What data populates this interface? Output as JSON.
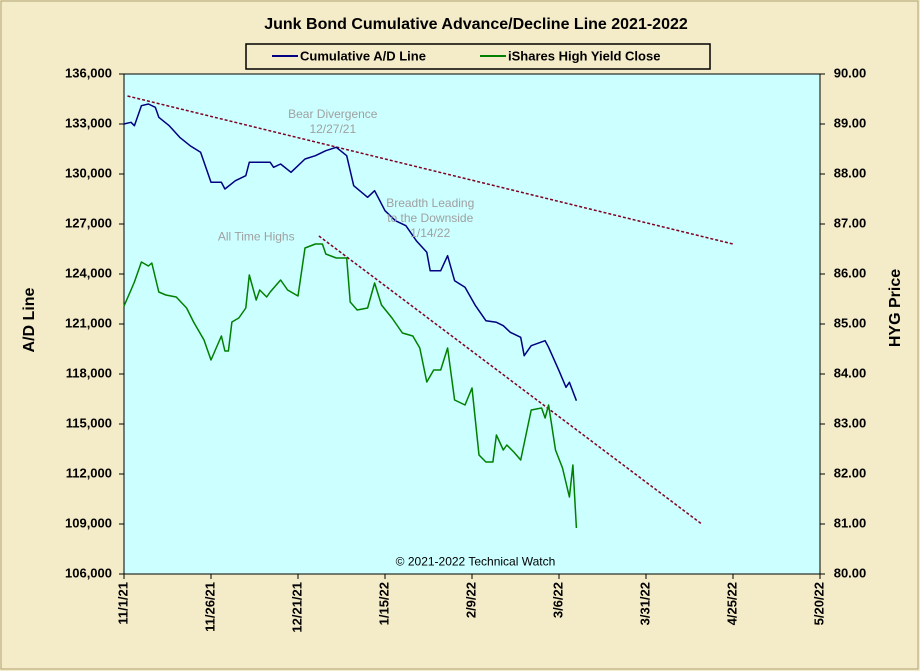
{
  "chart_data": {
    "type": "line",
    "title": "Junk Bond Cumulative  Advance/Decline  Line 2021-2022",
    "ylabel": "A/D Line",
    "y2label": "HYG Price",
    "xlim": [
      "2021-11-01",
      "2022-05-20"
    ],
    "xticks": [
      {
        "value": "2021-11-01",
        "label": "11/1/21"
      },
      {
        "value": "2021-11-26",
        "label": "11/26/21"
      },
      {
        "value": "2021-12-21",
        "label": "12/21/21"
      },
      {
        "value": "2022-01-15",
        "label": "1/15/22"
      },
      {
        "value": "2022-02-09",
        "label": "2/9/22"
      },
      {
        "value": "2022-03-06",
        "label": "3/6/22"
      },
      {
        "value": "2022-03-31",
        "label": "3/31/22"
      },
      {
        "value": "2022-04-25",
        "label": "4/25/22"
      },
      {
        "value": "2022-05-20",
        "label": "5/20/22"
      }
    ],
    "ylim": [
      106000,
      136000
    ],
    "yticks": [
      {
        "value": 106000,
        "label": "106,000"
      },
      {
        "value": 109000,
        "label": "109,000"
      },
      {
        "value": 112000,
        "label": "112,000"
      },
      {
        "value": 115000,
        "label": "115,000"
      },
      {
        "value": 118000,
        "label": "118,000"
      },
      {
        "value": 121000,
        "label": "121,000"
      },
      {
        "value": 124000,
        "label": "124,000"
      },
      {
        "value": 127000,
        "label": "127,000"
      },
      {
        "value": 130000,
        "label": "130,000"
      },
      {
        "value": 133000,
        "label": "133,000"
      },
      {
        "value": 136000,
        "label": "136,000"
      }
    ],
    "y2lim": [
      80,
      90
    ],
    "y2ticks": [
      {
        "value": 80,
        "label": "80.00"
      },
      {
        "value": 81,
        "label": "81.00"
      },
      {
        "value": 82,
        "label": "82.00"
      },
      {
        "value": 83,
        "label": "83.00"
      },
      {
        "value": 84,
        "label": "84.00"
      },
      {
        "value": 85,
        "label": "85.00"
      },
      {
        "value": 86,
        "label": "86.00"
      },
      {
        "value": 87,
        "label": "87.00"
      },
      {
        "value": 88,
        "label": "88.00"
      },
      {
        "value": 89,
        "label": "89.00"
      },
      {
        "value": 90,
        "label": "90.00"
      }
    ],
    "grid": false,
    "legend": "top",
    "series": [
      {
        "name": "Cumulative A/D Line",
        "color": "#000080",
        "axis": "y",
        "x": [
          "2021-11-01",
          "2021-11-03",
          "2021-11-04",
          "2021-11-06",
          "2021-11-08",
          "2021-11-10",
          "2021-11-11",
          "2021-11-14",
          "2021-11-17",
          "2021-11-20",
          "2021-11-23",
          "2021-11-26",
          "2021-11-29",
          "2021-11-30",
          "2021-12-03",
          "2021-12-06",
          "2021-12-07",
          "2021-12-10",
          "2021-12-13",
          "2021-12-14",
          "2021-12-16",
          "2021-12-19",
          "2021-12-21",
          "2021-12-23",
          "2021-12-26",
          "2021-12-29",
          "2022-01-01",
          "2022-01-04",
          "2022-01-06",
          "2022-01-10",
          "2022-01-12",
          "2022-01-15",
          "2022-01-18",
          "2022-01-21",
          "2022-01-24",
          "2022-01-27",
          "2022-01-28",
          "2022-01-31",
          "2022-02-02",
          "2022-02-04",
          "2022-02-07",
          "2022-02-10",
          "2022-02-13",
          "2022-02-16",
          "2022-02-18",
          "2022-02-20",
          "2022-02-23",
          "2022-02-24",
          "2022-02-26",
          "2022-03-02",
          "2022-03-03",
          "2022-03-06",
          "2022-03-08",
          "2022-03-09",
          "2022-03-11"
        ],
        "values": [
          133000,
          133100,
          132900,
          134100,
          134200,
          134000,
          133400,
          132900,
          132200,
          131700,
          131300,
          129500,
          129500,
          129100,
          129600,
          129900,
          130700,
          130700,
          130700,
          130400,
          130600,
          130100,
          130500,
          130900,
          131100,
          131400,
          131600,
          131100,
          129300,
          128600,
          129000,
          127800,
          127200,
          126900,
          126000,
          125300,
          124200,
          124200,
          125100,
          123600,
          123200,
          122100,
          121200,
          121100,
          120900,
          120500,
          120200,
          119100,
          119700,
          120000,
          119600,
          118200,
          117200,
          117500,
          116400
        ]
      },
      {
        "name": "iShares High Yield Close",
        "color": "#008000",
        "axis": "y2",
        "x": [
          "2021-11-01",
          "2021-11-03",
          "2021-11-04",
          "2021-11-06",
          "2021-11-08",
          "2021-11-09",
          "2021-11-11",
          "2021-11-13",
          "2021-11-16",
          "2021-11-19",
          "2021-11-21",
          "2021-11-24",
          "2021-11-26",
          "2021-11-29",
          "2021-11-30",
          "2021-12-01",
          "2021-12-02",
          "2021-12-04",
          "2021-12-06",
          "2021-12-07",
          "2021-12-09",
          "2021-12-10",
          "2021-12-12",
          "2021-12-13",
          "2021-12-16",
          "2021-12-18",
          "2021-12-21",
          "2021-12-23",
          "2021-12-26",
          "2021-12-28",
          "2021-12-29",
          "2022-01-01",
          "2022-01-04",
          "2022-01-05",
          "2022-01-07",
          "2022-01-10",
          "2022-01-12",
          "2022-01-14",
          "2022-01-17",
          "2022-01-20",
          "2022-01-23",
          "2022-01-25",
          "2022-01-27",
          "2022-01-29",
          "2022-01-31",
          "2022-02-02",
          "2022-02-04",
          "2022-02-07",
          "2022-02-09",
          "2022-02-11",
          "2022-02-13",
          "2022-02-15",
          "2022-02-16",
          "2022-02-18",
          "2022-02-19",
          "2022-02-21",
          "2022-02-23",
          "2022-02-26",
          "2022-03-01",
          "2022-03-02",
          "2022-03-03",
          "2022-03-05",
          "2022-03-07",
          "2022-03-09",
          "2022-03-10",
          "2022-03-11"
        ],
        "values": [
          85.36,
          85.68,
          85.84,
          86.24,
          86.16,
          86.22,
          85.64,
          85.58,
          85.54,
          85.32,
          85.04,
          84.68,
          84.28,
          84.76,
          84.46,
          84.46,
          85.04,
          85.12,
          85.32,
          85.98,
          85.48,
          85.68,
          85.54,
          85.64,
          85.88,
          85.68,
          85.56,
          86.52,
          86.6,
          86.6,
          86.4,
          86.32,
          86.32,
          85.44,
          85.28,
          85.32,
          85.82,
          85.38,
          85.12,
          84.82,
          84.76,
          84.52,
          83.84,
          84.08,
          84.08,
          84.52,
          83.48,
          83.38,
          83.72,
          82.38,
          82.24,
          82.24,
          82.78,
          82.48,
          82.58,
          82.44,
          82.28,
          83.28,
          83.32,
          83.12,
          83.38,
          82.48,
          82.12,
          81.54,
          82.18,
          80.92
        ]
      }
    ],
    "trendlines": [
      {
        "color": "#800020",
        "x": [
          "2021-11-02",
          "2022-04-25"
        ],
        "values": [
          134680,
          125800
        ]
      },
      {
        "color": "#800020",
        "x": [
          "2021-12-27",
          "2022-04-16"
        ],
        "values": [
          126280,
          109000
        ]
      }
    ],
    "annotations": [
      {
        "lines": [
          "Bear Divergence",
          "12/27/21"
        ],
        "x": "2021-12-31",
        "y": 133100
      },
      {
        "lines": [
          "Breadth Leading",
          "to the Downside",
          "1/14/22"
        ],
        "x": "2022-01-28",
        "y": 127300
      },
      {
        "lines": [
          "All Time Highs"
        ],
        "x": "2021-12-09",
        "y": 126200
      },
      {
        "lines": [
          "© 2021-2022  Technical  Watch"
        ],
        "x": "2022-02-10",
        "y": 106700
      }
    ]
  }
}
